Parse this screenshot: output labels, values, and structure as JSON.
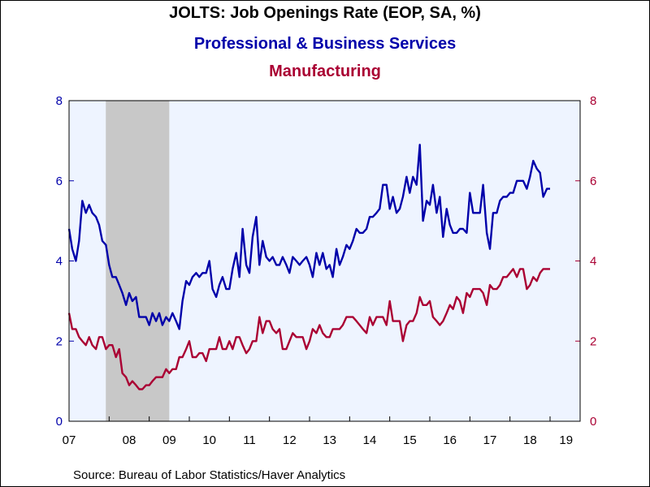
{
  "title": "JOLTS: Job Openings Rate (EOP, SA, %)",
  "series_titles": [
    "Professional & Business Services",
    "Manufacturing"
  ],
  "source": "Source:  Bureau of Labor Statistics/Haver Analytics",
  "colors": {
    "series1": "#0000AA",
    "series2": "#AA0033",
    "plot_bg": "#EEF4FF",
    "recession": "#C8C8C8",
    "text": "#000000"
  },
  "chart_data": {
    "type": "line",
    "x_unit": "year (decimal)",
    "xlim": [
      2007.0,
      2019.75
    ],
    "x_tick_labels": [
      "07",
      "08",
      "09",
      "10",
      "11",
      "12",
      "13",
      "14",
      "15",
      "16",
      "17",
      "18",
      "19"
    ],
    "ylim_left": [
      0,
      8
    ],
    "ylim_right": [
      0,
      8
    ],
    "y_ticks_left": [
      0,
      2,
      4,
      6,
      8
    ],
    "y_ticks_right": [
      0,
      2,
      4,
      6,
      8
    ],
    "grid": false,
    "shaded_periods": [
      {
        "label": "recession",
        "start": 2007.917,
        "end": 2009.5
      }
    ],
    "series": [
      {
        "name": "Professional & Business Services",
        "axis": "left",
        "points": [
          [
            2007.0,
            4.8
          ],
          [
            2007.08,
            4.3
          ],
          [
            2007.17,
            4.0
          ],
          [
            2007.25,
            4.5
          ],
          [
            2007.33,
            5.5
          ],
          [
            2007.42,
            5.2
          ],
          [
            2007.5,
            5.4
          ],
          [
            2007.58,
            5.2
          ],
          [
            2007.67,
            5.1
          ],
          [
            2007.75,
            4.9
          ],
          [
            2007.83,
            4.5
          ],
          [
            2007.92,
            4.4
          ],
          [
            2008.0,
            3.9
          ],
          [
            2008.08,
            3.6
          ],
          [
            2008.17,
            3.6
          ],
          [
            2008.25,
            3.4
          ],
          [
            2008.33,
            3.2
          ],
          [
            2008.42,
            2.9
          ],
          [
            2008.5,
            3.2
          ],
          [
            2008.58,
            3.0
          ],
          [
            2008.67,
            3.1
          ],
          [
            2008.75,
            2.6
          ],
          [
            2008.83,
            2.6
          ],
          [
            2008.92,
            2.6
          ],
          [
            2009.0,
            2.4
          ],
          [
            2009.08,
            2.7
          ],
          [
            2009.17,
            2.5
          ],
          [
            2009.25,
            2.7
          ],
          [
            2009.33,
            2.4
          ],
          [
            2009.42,
            2.6
          ],
          [
            2009.5,
            2.5
          ],
          [
            2009.58,
            2.7
          ],
          [
            2009.67,
            2.5
          ],
          [
            2009.75,
            2.3
          ],
          [
            2009.83,
            3.0
          ],
          [
            2009.92,
            3.5
          ],
          [
            2010.0,
            3.4
          ],
          [
            2010.08,
            3.6
          ],
          [
            2010.17,
            3.7
          ],
          [
            2010.25,
            3.6
          ],
          [
            2010.33,
            3.7
          ],
          [
            2010.42,
            3.7
          ],
          [
            2010.5,
            4.0
          ],
          [
            2010.58,
            3.3
          ],
          [
            2010.67,
            3.1
          ],
          [
            2010.75,
            3.4
          ],
          [
            2010.83,
            3.6
          ],
          [
            2010.92,
            3.3
          ],
          [
            2011.0,
            3.3
          ],
          [
            2011.08,
            3.8
          ],
          [
            2011.17,
            4.2
          ],
          [
            2011.25,
            3.6
          ],
          [
            2011.33,
            4.8
          ],
          [
            2011.42,
            3.9
          ],
          [
            2011.5,
            3.7
          ],
          [
            2011.58,
            4.6
          ],
          [
            2011.67,
            5.1
          ],
          [
            2011.75,
            3.9
          ],
          [
            2011.83,
            4.5
          ],
          [
            2011.92,
            4.1
          ],
          [
            2012.0,
            4.0
          ],
          [
            2012.08,
            4.1
          ],
          [
            2012.17,
            3.9
          ],
          [
            2012.25,
            3.9
          ],
          [
            2012.33,
            4.1
          ],
          [
            2012.42,
            3.9
          ],
          [
            2012.5,
            3.7
          ],
          [
            2012.58,
            4.1
          ],
          [
            2012.67,
            4.0
          ],
          [
            2012.75,
            3.9
          ],
          [
            2012.83,
            4.0
          ],
          [
            2012.92,
            4.1
          ],
          [
            2013.0,
            3.9
          ],
          [
            2013.08,
            3.6
          ],
          [
            2013.17,
            4.2
          ],
          [
            2013.25,
            3.9
          ],
          [
            2013.33,
            4.2
          ],
          [
            2013.42,
            3.8
          ],
          [
            2013.5,
            3.9
          ],
          [
            2013.58,
            3.6
          ],
          [
            2013.67,
            4.3
          ],
          [
            2013.75,
            3.9
          ],
          [
            2013.83,
            4.1
          ],
          [
            2013.92,
            4.4
          ],
          [
            2014.0,
            4.3
          ],
          [
            2014.08,
            4.5
          ],
          [
            2014.17,
            4.8
          ],
          [
            2014.25,
            4.7
          ],
          [
            2014.33,
            4.7
          ],
          [
            2014.42,
            4.8
          ],
          [
            2014.5,
            5.1
          ],
          [
            2014.58,
            5.1
          ],
          [
            2014.67,
            5.2
          ],
          [
            2014.75,
            5.3
          ],
          [
            2014.83,
            5.9
          ],
          [
            2014.92,
            5.9
          ],
          [
            2015.0,
            5.3
          ],
          [
            2015.08,
            5.6
          ],
          [
            2015.17,
            5.2
          ],
          [
            2015.25,
            5.3
          ],
          [
            2015.33,
            5.6
          ],
          [
            2015.42,
            6.1
          ],
          [
            2015.5,
            5.7
          ],
          [
            2015.58,
            6.1
          ],
          [
            2015.67,
            5.9
          ],
          [
            2015.75,
            6.9
          ],
          [
            2015.83,
            5.0
          ],
          [
            2015.92,
            5.5
          ],
          [
            2016.0,
            5.4
          ],
          [
            2016.08,
            5.9
          ],
          [
            2016.17,
            5.2
          ],
          [
            2016.25,
            5.6
          ],
          [
            2016.33,
            4.6
          ],
          [
            2016.42,
            5.3
          ],
          [
            2016.5,
            4.9
          ],
          [
            2016.58,
            4.7
          ],
          [
            2016.67,
            4.7
          ],
          [
            2016.75,
            4.8
          ],
          [
            2016.83,
            4.8
          ],
          [
            2016.92,
            4.7
          ],
          [
            2017.0,
            5.7
          ],
          [
            2017.08,
            5.2
          ],
          [
            2017.17,
            5.2
          ],
          [
            2017.25,
            5.2
          ],
          [
            2017.33,
            5.9
          ],
          [
            2017.42,
            4.7
          ],
          [
            2017.5,
            4.3
          ],
          [
            2017.58,
            5.2
          ],
          [
            2017.67,
            5.2
          ],
          [
            2017.75,
            5.5
          ],
          [
            2017.83,
            5.6
          ],
          [
            2017.92,
            5.6
          ],
          [
            2018.0,
            5.7
          ],
          [
            2018.08,
            5.7
          ],
          [
            2018.17,
            6.0
          ],
          [
            2018.25,
            6.0
          ],
          [
            2018.33,
            6.0
          ],
          [
            2018.42,
            5.8
          ],
          [
            2018.5,
            6.1
          ],
          [
            2018.58,
            6.5
          ],
          [
            2018.67,
            6.3
          ],
          [
            2018.75,
            6.2
          ],
          [
            2018.83,
            5.6
          ],
          [
            2018.92,
            5.8
          ],
          [
            2019.0,
            5.8
          ]
        ]
      },
      {
        "name": "Manufacturing",
        "axis": "right",
        "points": [
          [
            2007.0,
            2.7
          ],
          [
            2007.08,
            2.3
          ],
          [
            2007.17,
            2.3
          ],
          [
            2007.25,
            2.1
          ],
          [
            2007.33,
            2.0
          ],
          [
            2007.42,
            1.9
          ],
          [
            2007.5,
            2.1
          ],
          [
            2007.58,
            1.9
          ],
          [
            2007.67,
            1.8
          ],
          [
            2007.75,
            2.1
          ],
          [
            2007.83,
            2.1
          ],
          [
            2007.92,
            1.8
          ],
          [
            2008.0,
            1.9
          ],
          [
            2008.08,
            1.9
          ],
          [
            2008.17,
            1.6
          ],
          [
            2008.25,
            1.8
          ],
          [
            2008.33,
            1.2
          ],
          [
            2008.42,
            1.1
          ],
          [
            2008.5,
            0.9
          ],
          [
            2008.58,
            1.0
          ],
          [
            2008.67,
            0.9
          ],
          [
            2008.75,
            0.8
          ],
          [
            2008.83,
            0.8
          ],
          [
            2008.92,
            0.9
          ],
          [
            2009.0,
            0.9
          ],
          [
            2009.08,
            1.0
          ],
          [
            2009.17,
            1.1
          ],
          [
            2009.25,
            1.1
          ],
          [
            2009.33,
            1.1
          ],
          [
            2009.42,
            1.3
          ],
          [
            2009.5,
            1.2
          ],
          [
            2009.58,
            1.3
          ],
          [
            2009.67,
            1.3
          ],
          [
            2009.75,
            1.6
          ],
          [
            2009.83,
            1.6
          ],
          [
            2009.92,
            1.8
          ],
          [
            2010.0,
            2.0
          ],
          [
            2010.08,
            1.6
          ],
          [
            2010.17,
            1.6
          ],
          [
            2010.25,
            1.7
          ],
          [
            2010.33,
            1.7
          ],
          [
            2010.42,
            1.5
          ],
          [
            2010.5,
            1.8
          ],
          [
            2010.58,
            1.8
          ],
          [
            2010.67,
            1.8
          ],
          [
            2010.75,
            2.1
          ],
          [
            2010.83,
            1.8
          ],
          [
            2010.92,
            1.8
          ],
          [
            2011.0,
            2.0
          ],
          [
            2011.08,
            1.8
          ],
          [
            2011.17,
            2.1
          ],
          [
            2011.25,
            2.1
          ],
          [
            2011.33,
            1.9
          ],
          [
            2011.42,
            1.7
          ],
          [
            2011.5,
            1.8
          ],
          [
            2011.58,
            2.0
          ],
          [
            2011.67,
            2.0
          ],
          [
            2011.75,
            2.6
          ],
          [
            2011.83,
            2.2
          ],
          [
            2011.92,
            2.5
          ],
          [
            2012.0,
            2.5
          ],
          [
            2012.08,
            2.3
          ],
          [
            2012.17,
            2.2
          ],
          [
            2012.25,
            2.3
          ],
          [
            2012.33,
            1.8
          ],
          [
            2012.42,
            1.8
          ],
          [
            2012.5,
            2.0
          ],
          [
            2012.58,
            2.2
          ],
          [
            2012.67,
            2.1
          ],
          [
            2012.75,
            2.1
          ],
          [
            2012.83,
            2.1
          ],
          [
            2012.92,
            1.8
          ],
          [
            2013.0,
            2.0
          ],
          [
            2013.08,
            2.3
          ],
          [
            2013.17,
            2.2
          ],
          [
            2013.25,
            2.4
          ],
          [
            2013.33,
            2.2
          ],
          [
            2013.42,
            2.1
          ],
          [
            2013.5,
            2.1
          ],
          [
            2013.58,
            2.3
          ],
          [
            2013.67,
            2.3
          ],
          [
            2013.75,
            2.3
          ],
          [
            2013.83,
            2.4
          ],
          [
            2013.92,
            2.6
          ],
          [
            2014.0,
            2.6
          ],
          [
            2014.08,
            2.6
          ],
          [
            2014.17,
            2.5
          ],
          [
            2014.25,
            2.4
          ],
          [
            2014.33,
            2.3
          ],
          [
            2014.42,
            2.2
          ],
          [
            2014.5,
            2.6
          ],
          [
            2014.58,
            2.4
          ],
          [
            2014.67,
            2.6
          ],
          [
            2014.75,
            2.6
          ],
          [
            2014.83,
            2.6
          ],
          [
            2014.92,
            2.4
          ],
          [
            2015.0,
            3.0
          ],
          [
            2015.08,
            2.5
          ],
          [
            2015.17,
            2.5
          ],
          [
            2015.25,
            2.5
          ],
          [
            2015.33,
            2.0
          ],
          [
            2015.42,
            2.4
          ],
          [
            2015.5,
            2.5
          ],
          [
            2015.58,
            2.5
          ],
          [
            2015.67,
            2.7
          ],
          [
            2015.75,
            3.1
          ],
          [
            2015.83,
            2.9
          ],
          [
            2015.92,
            2.9
          ],
          [
            2016.0,
            3.0
          ],
          [
            2016.08,
            2.6
          ],
          [
            2016.17,
            2.5
          ],
          [
            2016.25,
            2.4
          ],
          [
            2016.33,
            2.5
          ],
          [
            2016.42,
            2.7
          ],
          [
            2016.5,
            2.9
          ],
          [
            2016.58,
            2.8
          ],
          [
            2016.67,
            3.1
          ],
          [
            2016.75,
            3.0
          ],
          [
            2016.83,
            2.7
          ],
          [
            2016.92,
            3.2
          ],
          [
            2017.0,
            3.1
          ],
          [
            2017.08,
            3.3
          ],
          [
            2017.17,
            3.3
          ],
          [
            2017.25,
            3.3
          ],
          [
            2017.33,
            3.2
          ],
          [
            2017.42,
            2.9
          ],
          [
            2017.5,
            3.4
          ],
          [
            2017.58,
            3.3
          ],
          [
            2017.67,
            3.3
          ],
          [
            2017.75,
            3.4
          ],
          [
            2017.83,
            3.6
          ],
          [
            2017.92,
            3.6
          ],
          [
            2018.0,
            3.7
          ],
          [
            2018.08,
            3.8
          ],
          [
            2018.17,
            3.6
          ],
          [
            2018.25,
            3.8
          ],
          [
            2018.33,
            3.8
          ],
          [
            2018.42,
            3.3
          ],
          [
            2018.5,
            3.4
          ],
          [
            2018.58,
            3.6
          ],
          [
            2018.67,
            3.5
          ],
          [
            2018.75,
            3.7
          ],
          [
            2018.83,
            3.8
          ],
          [
            2018.92,
            3.8
          ],
          [
            2019.0,
            3.8
          ]
        ]
      }
    ]
  }
}
